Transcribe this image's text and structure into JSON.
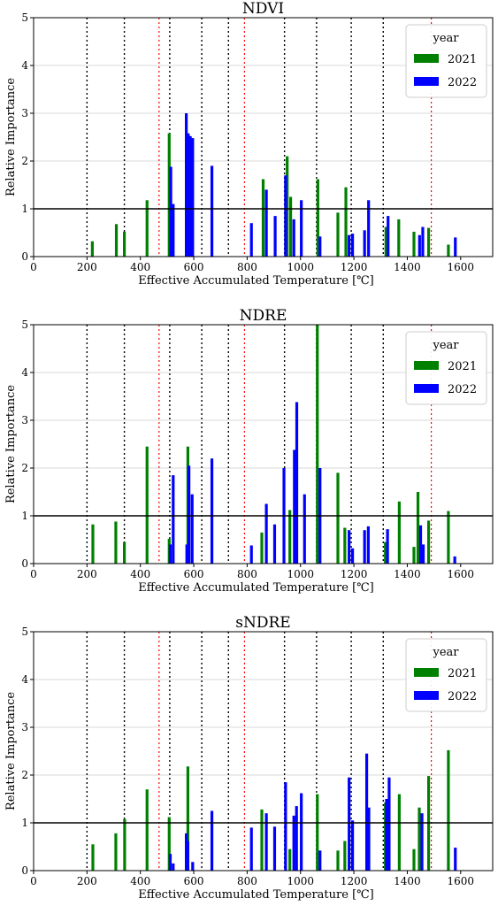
{
  "legend": {
    "title": "year",
    "placement": "top-right"
  },
  "colors": {
    "2021": "#008000",
    "2022": "#0000ff",
    "vline_black": "#000000",
    "vline_red": "#ff0000",
    "threshold": "#000000",
    "grid": "#cccccc"
  },
  "chart_data": [
    {
      "type": "bar",
      "title": "NDVI",
      "xlabel": "Effective Accumulated Temperature [℃]",
      "ylabel": "Relative Importance",
      "xlim": [
        0,
        1720
      ],
      "ylim": [
        0,
        5
      ],
      "xticks": [
        0,
        200,
        400,
        600,
        800,
        1000,
        1200,
        1400,
        1600
      ],
      "yticks": [
        0,
        1,
        2,
        3,
        4,
        5
      ],
      "grid": true,
      "threshold": 1,
      "vlines_black": [
        200,
        340,
        510,
        630,
        730,
        940,
        1060,
        1190,
        1310
      ],
      "vlines_red": [
        470,
        790,
        1490
      ],
      "series": [
        {
          "name": "2021",
          "x": [
            220,
            310,
            340,
            425,
            508,
            575,
            580,
            860,
            950,
            963,
            1065,
            1140,
            1170,
            1320,
            1368,
            1425,
            1480,
            1554
          ],
          "values": [
            0.32,
            0.68,
            0.52,
            1.18,
            2.58,
            1.55,
            2.55,
            1.62,
            2.1,
            1.25,
            1.62,
            0.92,
            1.45,
            0.62,
            0.78,
            0.52,
            0.6,
            0.25
          ]
        },
        {
          "name": "2022",
          "x": [
            514,
            523,
            572,
            579,
            587,
            596,
            668,
            816,
            872,
            905,
            944,
            975,
            1003,
            1073,
            1182,
            1195,
            1240,
            1255,
            1328,
            1446,
            1458,
            1580
          ],
          "values": [
            1.88,
            1.1,
            3.0,
            2.58,
            2.52,
            2.48,
            1.9,
            0.7,
            1.4,
            0.85,
            1.7,
            0.78,
            1.18,
            0.42,
            0.45,
            0.48,
            0.55,
            1.18,
            0.85,
            0.45,
            0.62,
            0.4
          ]
        }
      ]
    },
    {
      "type": "bar",
      "title": "NDRE",
      "xlabel": "Effective Accumulated Temperature [℃]",
      "ylabel": "Relative Importance",
      "xlim": [
        0,
        1720
      ],
      "ylim": [
        0,
        5
      ],
      "xticks": [
        0,
        200,
        400,
        600,
        800,
        1000,
        1200,
        1400,
        1600
      ],
      "yticks": [
        0,
        1,
        2,
        3,
        4,
        5
      ],
      "grid": true,
      "threshold": 1,
      "vlines_black": [
        200,
        340,
        510,
        630,
        730,
        940,
        1060,
        1190,
        1310
      ],
      "vlines_red": [
        470,
        790,
        1490
      ],
      "series": [
        {
          "name": "2021",
          "x": [
            222,
            308,
            340,
            425,
            508,
            578,
            855,
            960,
            1063,
            1140,
            1166,
            1318,
            1370,
            1425,
            1440,
            1480,
            1554
          ],
          "values": [
            0.82,
            0.88,
            0.45,
            2.45,
            0.52,
            2.45,
            0.65,
            1.12,
            5.0,
            1.9,
            0.75,
            0.45,
            1.3,
            0.35,
            1.5,
            0.9,
            1.1
          ]
        },
        {
          "name": "2022",
          "x": [
            512,
            523,
            574,
            582,
            594,
            668,
            816,
            872,
            903,
            938,
            977,
            986,
            1015,
            1073,
            1182,
            1195,
            1240,
            1254,
            1326,
            1450,
            1460,
            1578
          ],
          "values": [
            0.4,
            1.85,
            0.4,
            2.05,
            1.45,
            2.2,
            0.38,
            1.25,
            0.82,
            2.0,
            2.38,
            3.38,
            1.45,
            2.0,
            0.7,
            0.32,
            0.7,
            0.78,
            0.72,
            0.8,
            0.4,
            0.15
          ]
        }
      ]
    },
    {
      "type": "bar",
      "title": "sNDRE",
      "xlabel": "Effective Accumulated Temperature [℃]",
      "ylabel": "Relative Importance",
      "xlim": [
        0,
        1720
      ],
      "ylim": [
        0,
        5
      ],
      "xticks": [
        0,
        200,
        400,
        600,
        800,
        1000,
        1200,
        1400,
        1600
      ],
      "yticks": [
        0,
        1,
        2,
        3,
        4,
        5
      ],
      "grid": true,
      "threshold": 1,
      "vlines_black": [
        200,
        340,
        510,
        630,
        730,
        940,
        1060,
        1190,
        1310
      ],
      "vlines_red": [
        470,
        790,
        1490
      ],
      "series": [
        {
          "name": "2021",
          "x": [
            222,
            308,
            341,
            425,
            508,
            578,
            855,
            960,
            1063,
            1140,
            1166,
            1318,
            1370,
            1425,
            1445,
            1480,
            1554
          ],
          "values": [
            0.55,
            0.78,
            1.08,
            1.7,
            1.12,
            2.18,
            1.28,
            0.45,
            1.6,
            0.42,
            0.62,
            1.42,
            1.6,
            0.45,
            1.32,
            1.98,
            2.52
          ]
        },
        {
          "name": "2022",
          "x": [
            512,
            523,
            572,
            578,
            596,
            668,
            816,
            872,
            903,
            944,
            975,
            985,
            1003,
            1073,
            1182,
            1195,
            1248,
            1256,
            1322,
            1332,
            1455,
            1580
          ],
          "values": [
            0.35,
            0.15,
            0.78,
            0.62,
            0.18,
            1.25,
            0.9,
            1.2,
            0.92,
            1.85,
            1.15,
            1.35,
            1.62,
            0.42,
            1.95,
            1.05,
            2.45,
            1.32,
            1.5,
            1.95,
            1.2,
            0.48
          ]
        }
      ]
    }
  ]
}
